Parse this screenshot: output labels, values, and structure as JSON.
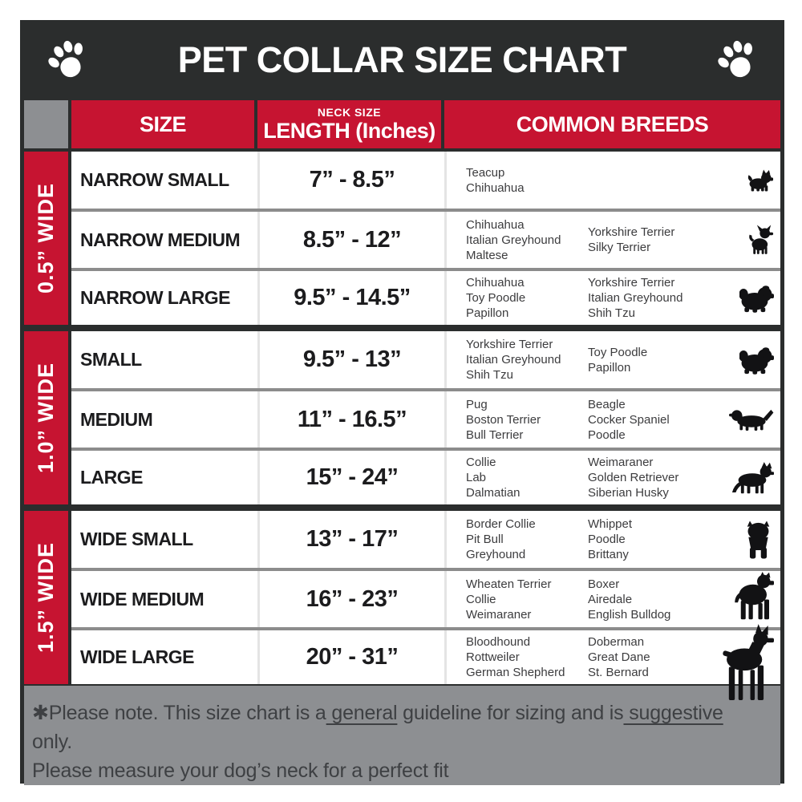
{
  "header": {
    "paw_icon": "paw-print-icon"
  },
  "table_headers": {
    "size": "SIZE",
    "neck_top": "NECK SIZE",
    "neck_main": "LENGTH (Inches)",
    "breeds": "COMMON BREEDS"
  },
  "chart_data": {
    "type": "table",
    "title": "PET COLLAR SIZE CHART",
    "columns": [
      "SIZE",
      "NECK SIZE LENGTH (Inches)",
      "COMMON BREEDS"
    ],
    "groups": [
      {
        "collar_width": "0.5” WIDE",
        "rows": [
          {
            "size": "NARROW SMALL",
            "neck_length": "7” - 8.5”",
            "breeds_col1": [
              "Teacup",
              "Chihuahua"
            ],
            "breeds_col2": [],
            "icon": "yorkie-icon"
          },
          {
            "size": "NARROW MEDIUM",
            "neck_length": "8.5” - 12”",
            "breeds_col1": [
              "Chihuahua",
              "Italian Greyhound",
              "Maltese"
            ],
            "breeds_col2": [
              "Yorkshire Terrier",
              "Silky Terrier"
            ],
            "icon": "chihuahua-icon"
          },
          {
            "size": "NARROW LARGE",
            "neck_length": "9.5” - 14.5”",
            "breeds_col1": [
              "Chihuahua",
              "Toy Poodle",
              "Papillon"
            ],
            "breeds_col2": [
              "Yorkshire Terrier",
              "Italian Greyhound",
              "Shih Tzu"
            ],
            "icon": "shih-tzu-icon"
          }
        ]
      },
      {
        "collar_width": "1.0” WIDE",
        "rows": [
          {
            "size": "SMALL",
            "neck_length": "9.5” - 13”",
            "breeds_col1": [
              "Yorkshire Terrier",
              "Italian Greyhound",
              "Shih Tzu"
            ],
            "breeds_col2": [
              "Toy Poodle",
              "Papillon"
            ],
            "icon": "shih-tzu-icon"
          },
          {
            "size": "MEDIUM",
            "neck_length": "11” - 16.5”",
            "breeds_col1": [
              "Pug",
              "Boston Terrier",
              "Bull Terrier"
            ],
            "breeds_col2": [
              "Beagle",
              "Cocker Spaniel",
              "Poodle"
            ],
            "icon": "beagle-icon"
          },
          {
            "size": "LARGE",
            "neck_length": "15” - 24”",
            "breeds_col1": [
              "Collie",
              "Lab",
              "Dalmatian"
            ],
            "breeds_col2": [
              "Weimaraner",
              "Golden Retriever",
              "Siberian Husky"
            ],
            "icon": "german-shepherd-icon"
          }
        ]
      },
      {
        "collar_width": "1.5” WIDE",
        "rows": [
          {
            "size": "WIDE SMALL",
            "neck_length": "13” - 17”",
            "breeds_col1": [
              "Border Collie",
              "Pit Bull",
              "Greyhound"
            ],
            "breeds_col2": [
              "Whippet",
              "Poodle",
              "Brittany"
            ],
            "icon": "bulldog-icon"
          },
          {
            "size": "WIDE MEDIUM",
            "neck_length": "16” - 23”",
            "breeds_col1": [
              "Wheaten Terrier",
              "Collie",
              "Weimaraner"
            ],
            "breeds_col2": [
              "Boxer",
              "Airedale",
              "English Bulldog"
            ],
            "icon": "pit-bull-icon"
          },
          {
            "size": "WIDE LARGE",
            "neck_length": "20” - 31”",
            "breeds_col1": [
              "Bloodhound",
              "Rottweiler",
              "German Shepherd"
            ],
            "breeds_col2": [
              "Doberman",
              "Great Dane",
              "St. Bernard"
            ],
            "icon": "doberman-icon"
          }
        ]
      }
    ]
  },
  "footer": {
    "line1_prefix": "✱Please note. This size chart is a",
    "line1_underline1": " general",
    "line1_mid": " guideline for sizing and is",
    "line1_underline2": " suggestive",
    "line1_suffix": " only.",
    "line2": "Please measure your dog’s neck for a perfect fit"
  },
  "colors": {
    "accent_red": "#c61431",
    "header_dark": "#2b2d2d",
    "gray_block": "#8d8f92",
    "row_separator": "#8c8c8c",
    "column_separator": "#e4e4e4",
    "footer_text": "#3e4043"
  }
}
